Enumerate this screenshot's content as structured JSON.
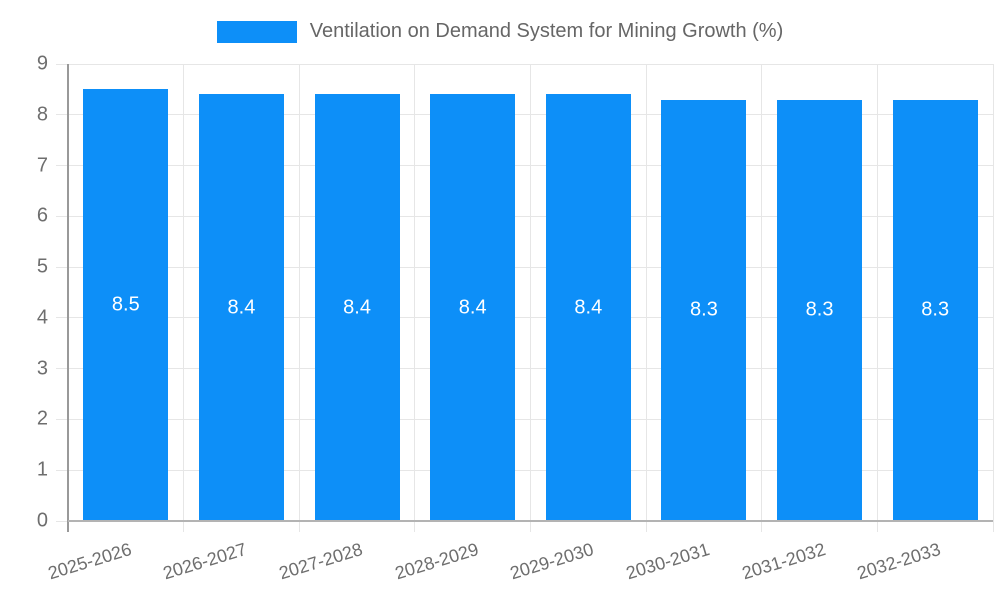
{
  "chart_data": {
    "type": "bar",
    "title": "Ventilation on Demand System for Mining Growth (%)",
    "categories": [
      "2025-2026",
      "2026-2027",
      "2027-2028",
      "2028-2029",
      "2029-2030",
      "2030-2031",
      "2031-2032",
      "2032-2033"
    ],
    "values": [
      8.5,
      8.4,
      8.4,
      8.4,
      8.4,
      8.3,
      8.3,
      8.3
    ],
    "value_labels": [
      "8.5",
      "8.4",
      "8.4",
      "8.4",
      "8.4",
      "8.3",
      "8.3",
      "8.3"
    ],
    "ytick_labels": [
      "0",
      "1",
      "2",
      "3",
      "4",
      "5",
      "6",
      "7",
      "8",
      "9"
    ],
    "ylim": [
      0,
      9
    ],
    "ytick_step": 1,
    "grid": true,
    "legend_position": "top",
    "xlabel": "",
    "ylabel": "",
    "colors": {
      "bar": "#0d8ff8",
      "value_label": "#ffffff",
      "axis_text": "#6e6e6e",
      "legend_text": "#666666",
      "gridline": "#e6e6e6",
      "y_axis_line": "#999999",
      "x_axis_line": "#b3b3b3",
      "background": "#ffffff"
    }
  }
}
